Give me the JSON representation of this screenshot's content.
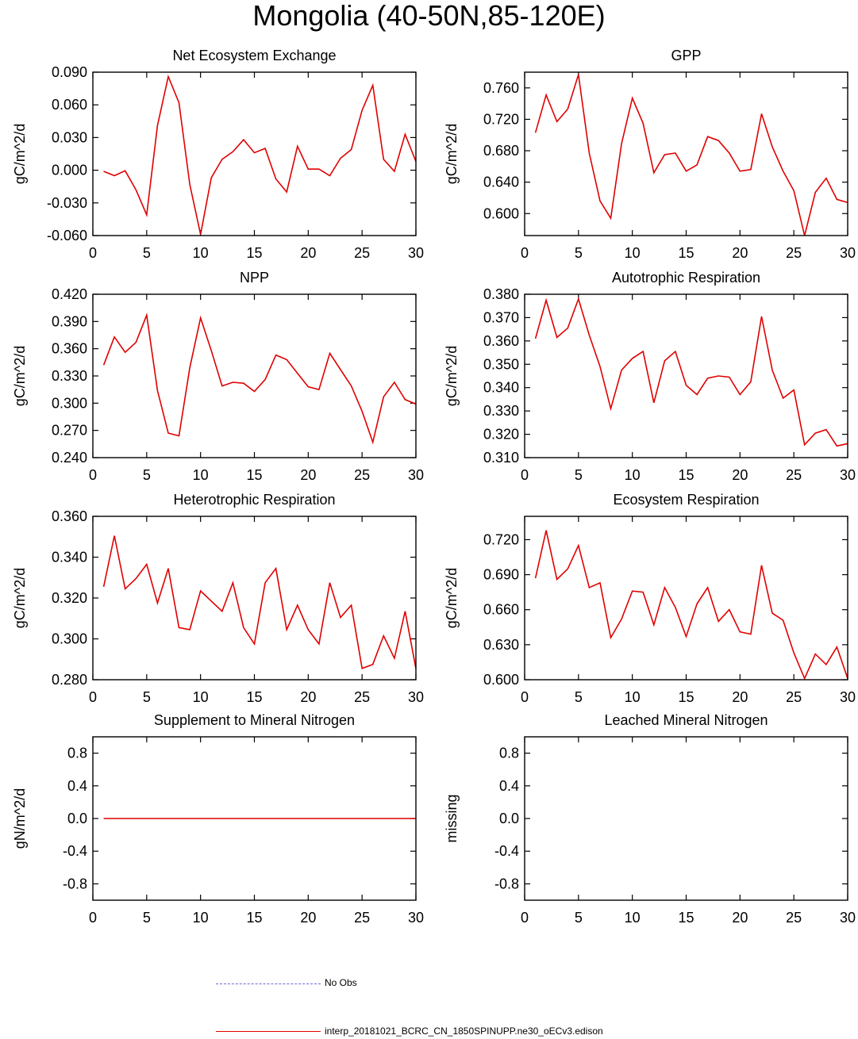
{
  "title": "Mongolia (40-50N,85-120E)",
  "colors": {
    "model": "#e00000",
    "obs": "#6a6ad8",
    "axis": "#000000"
  },
  "legend": {
    "obs_label": "No Obs",
    "model_label": "interp_20181021_BCRC_CN_1850SPINUPP.ne30_oECv3.edison"
  },
  "chart_data": [
    {
      "type": "line",
      "title": "Net Ecosystem Exchange",
      "ylabel": "gC/m^2/d",
      "xlim": [
        0,
        30
      ],
      "ylim": [
        -0.06,
        0.09
      ],
      "xticks": [
        0,
        5,
        10,
        15,
        20,
        25,
        30
      ],
      "yticks": [
        -0.06,
        -0.03,
        0.0,
        0.03,
        0.06,
        0.09
      ],
      "ytick_labels": [
        "-0.060",
        "-0.030",
        "0.000",
        "0.030",
        "0.060",
        "0.090"
      ],
      "x": [
        1,
        2,
        3,
        4,
        5,
        6,
        7,
        8,
        9,
        10,
        11,
        12,
        13,
        14,
        15,
        16,
        17,
        18,
        19,
        20,
        21,
        22,
        23,
        24,
        25,
        26,
        27,
        28,
        29,
        30
      ],
      "series": [
        {
          "name": "model",
          "values": [
            -0.001,
            -0.005,
            -0.0005,
            -0.018,
            -0.041,
            0.041,
            0.086,
            0.062,
            -0.013,
            -0.059,
            -0.007,
            0.01,
            0.017,
            0.028,
            0.016,
            0.02,
            -0.008,
            -0.02,
            0.022,
            0.001,
            0.001,
            -0.005,
            0.011,
            0.019,
            0.055,
            0.078,
            0.01,
            -0.001,
            0.033,
            0.008
          ]
        }
      ]
    },
    {
      "type": "line",
      "title": "GPP",
      "ylabel": "gC/m^2/d",
      "xlim": [
        0,
        30
      ],
      "ylim": [
        0.572,
        0.78
      ],
      "xticks": [
        0,
        5,
        10,
        15,
        20,
        25,
        30
      ],
      "yticks": [
        0.6,
        0.64,
        0.68,
        0.72,
        0.76
      ],
      "ytick_labels": [
        "0.600",
        "0.640",
        "0.680",
        "0.720",
        "0.760"
      ],
      "x": [
        1,
        2,
        3,
        4,
        5,
        6,
        7,
        8,
        9,
        10,
        11,
        12,
        13,
        14,
        15,
        16,
        17,
        18,
        19,
        20,
        21,
        22,
        23,
        24,
        25,
        26,
        27,
        28,
        29,
        30
      ],
      "series": [
        {
          "name": "model",
          "values": [
            0.703,
            0.751,
            0.717,
            0.733,
            0.777,
            0.677,
            0.616,
            0.594,
            0.689,
            0.747,
            0.715,
            0.652,
            0.675,
            0.677,
            0.654,
            0.662,
            0.698,
            0.693,
            0.677,
            0.654,
            0.656,
            0.727,
            0.685,
            0.654,
            0.629,
            0.572,
            0.627,
            0.645,
            0.618,
            0.614
          ]
        }
      ]
    },
    {
      "type": "line",
      "title": "NPP",
      "ylabel": "gC/m^2/d",
      "xlim": [
        0,
        30
      ],
      "ylim": [
        0.24,
        0.42
      ],
      "xticks": [
        0,
        5,
        10,
        15,
        20,
        25,
        30
      ],
      "yticks": [
        0.24,
        0.27,
        0.3,
        0.33,
        0.36,
        0.39,
        0.42
      ],
      "ytick_labels": [
        "0.240",
        "0.270",
        "0.300",
        "0.330",
        "0.360",
        "0.390",
        "0.420"
      ],
      "x": [
        1,
        2,
        3,
        4,
        5,
        6,
        7,
        8,
        9,
        10,
        11,
        12,
        13,
        14,
        15,
        16,
        17,
        18,
        19,
        20,
        21,
        22,
        23,
        24,
        25,
        26,
        27,
        28,
        29,
        30
      ],
      "series": [
        {
          "name": "model",
          "values": [
            0.342,
            0.373,
            0.356,
            0.367,
            0.397,
            0.314,
            0.267,
            0.264,
            0.339,
            0.394,
            0.358,
            0.319,
            0.323,
            0.322,
            0.313,
            0.326,
            0.353,
            0.348,
            0.333,
            0.318,
            0.315,
            0.355,
            0.337,
            0.319,
            0.291,
            0.257,
            0.307,
            0.323,
            0.304,
            0.299
          ]
        }
      ]
    },
    {
      "type": "line",
      "title": "Autotrophic Respiration",
      "ylabel": "gC/m^2/d",
      "xlim": [
        0,
        30
      ],
      "ylim": [
        0.31,
        0.38
      ],
      "xticks": [
        0,
        5,
        10,
        15,
        20,
        25,
        30
      ],
      "yticks": [
        0.31,
        0.32,
        0.33,
        0.34,
        0.35,
        0.36,
        0.37,
        0.38
      ],
      "ytick_labels": [
        "0.310",
        "0.320",
        "0.330",
        "0.340",
        "0.350",
        "0.360",
        "0.370",
        "0.380"
      ],
      "x": [
        1,
        2,
        3,
        4,
        5,
        6,
        7,
        8,
        9,
        10,
        11,
        12,
        13,
        14,
        15,
        16,
        17,
        18,
        19,
        20,
        21,
        22,
        23,
        24,
        25,
        26,
        27,
        28,
        29,
        30
      ],
      "series": [
        {
          "name": "model",
          "values": [
            0.361,
            0.3775,
            0.3615,
            0.3655,
            0.378,
            0.3625,
            0.349,
            0.331,
            0.3475,
            0.3525,
            0.3555,
            0.3335,
            0.3515,
            0.3555,
            0.341,
            0.337,
            0.344,
            0.345,
            0.3445,
            0.337,
            0.3425,
            0.3705,
            0.3475,
            0.3355,
            0.339,
            0.3155,
            0.3205,
            0.322,
            0.315,
            0.316
          ]
        }
      ]
    },
    {
      "type": "line",
      "title": "Heterotrophic Respiration",
      "ylabel": "gC/m^2/d",
      "xlim": [
        0,
        30
      ],
      "ylim": [
        0.28,
        0.36
      ],
      "xticks": [
        0,
        5,
        10,
        15,
        20,
        25,
        30
      ],
      "yticks": [
        0.28,
        0.3,
        0.32,
        0.34,
        0.36
      ],
      "ytick_labels": [
        "0.280",
        "0.300",
        "0.320",
        "0.340",
        "0.360"
      ],
      "x": [
        1,
        2,
        3,
        4,
        5,
        6,
        7,
        8,
        9,
        10,
        11,
        12,
        13,
        14,
        15,
        16,
        17,
        18,
        19,
        20,
        21,
        22,
        23,
        24,
        25,
        26,
        27,
        28,
        29,
        30
      ],
      "series": [
        {
          "name": "model",
          "values": [
            0.3255,
            0.3505,
            0.3245,
            0.3295,
            0.3365,
            0.3175,
            0.3345,
            0.3055,
            0.3045,
            0.3235,
            0.3185,
            0.3135,
            0.3275,
            0.3055,
            0.2975,
            0.3275,
            0.3345,
            0.3045,
            0.3165,
            0.3045,
            0.2975,
            0.3275,
            0.3105,
            0.3165,
            0.2855,
            0.2875,
            0.3015,
            0.2905,
            0.3135,
            0.2855
          ]
        }
      ]
    },
    {
      "type": "line",
      "title": "Ecosystem Respiration",
      "ylabel": "gC/m^2/d",
      "xlim": [
        0,
        30
      ],
      "ylim": [
        0.6,
        0.74
      ],
      "xticks": [
        0,
        5,
        10,
        15,
        20,
        25,
        30
      ],
      "yticks": [
        0.6,
        0.63,
        0.66,
        0.69,
        0.72
      ],
      "ytick_labels": [
        "0.600",
        "0.630",
        "0.660",
        "0.690",
        "0.720"
      ],
      "x": [
        1,
        2,
        3,
        4,
        5,
        6,
        7,
        8,
        9,
        10,
        11,
        12,
        13,
        14,
        15,
        16,
        17,
        18,
        19,
        20,
        21,
        22,
        23,
        24,
        25,
        26,
        27,
        28,
        29,
        30
      ],
      "series": [
        {
          "name": "model",
          "values": [
            0.687,
            0.728,
            0.686,
            0.695,
            0.715,
            0.679,
            0.683,
            0.636,
            0.652,
            0.676,
            0.675,
            0.647,
            0.679,
            0.662,
            0.637,
            0.665,
            0.679,
            0.65,
            0.66,
            0.641,
            0.639,
            0.698,
            0.657,
            0.651,
            0.623,
            0.601,
            0.622,
            0.613,
            0.628,
            0.601
          ]
        }
      ]
    },
    {
      "type": "line",
      "title": "Supplement to Mineral Nitrogen",
      "ylabel": "gN/m^2/d",
      "xlim": [
        0,
        30
      ],
      "ylim": [
        -1.0,
        1.0
      ],
      "xticks": [
        0,
        5,
        10,
        15,
        20,
        25,
        30
      ],
      "yticks": [
        -0.8,
        -0.4,
        0.0,
        0.4,
        0.8
      ],
      "ytick_labels": [
        "-0.8",
        "-0.4",
        "0.0",
        "0.4",
        "0.8"
      ],
      "x": [
        1,
        2,
        3,
        4,
        5,
        6,
        7,
        8,
        9,
        10,
        11,
        12,
        13,
        14,
        15,
        16,
        17,
        18,
        19,
        20,
        21,
        22,
        23,
        24,
        25,
        26,
        27,
        28,
        29,
        30
      ],
      "series": [
        {
          "name": "model",
          "values": [
            0,
            0,
            0,
            0,
            0,
            0,
            0,
            0,
            0,
            0,
            0,
            0,
            0,
            0,
            0,
            0,
            0,
            0,
            0,
            0,
            0,
            0,
            0,
            0,
            0,
            0,
            0,
            0,
            0,
            0
          ]
        }
      ]
    },
    {
      "type": "line",
      "title": "Leached Mineral Nitrogen",
      "ylabel": "missing",
      "xlim": [
        0,
        30
      ],
      "ylim": [
        -1.0,
        1.0
      ],
      "xticks": [
        0,
        5,
        10,
        15,
        20,
        25,
        30
      ],
      "yticks": [
        -0.8,
        -0.4,
        0.0,
        0.4,
        0.8
      ],
      "ytick_labels": [
        "-0.8",
        "-0.4",
        "0.0",
        "0.4",
        "0.8"
      ],
      "x": [],
      "series": []
    }
  ]
}
